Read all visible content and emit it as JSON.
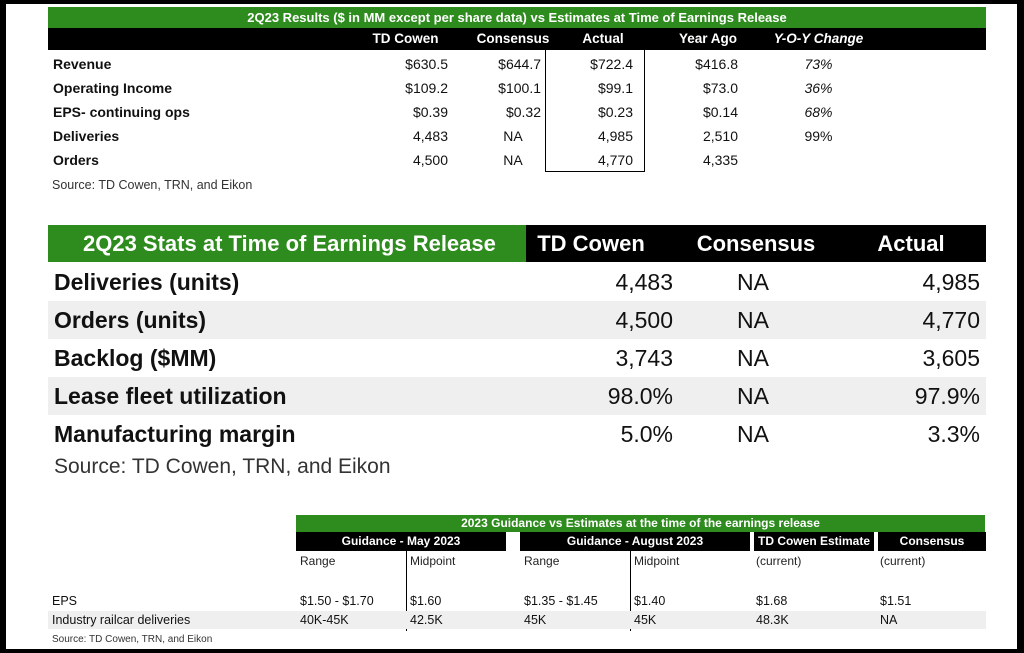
{
  "table1": {
    "title": "2Q23 Results ($ in MM except per share data) vs Estimates at Time of Earnings Release",
    "headers": [
      "TD Cowen",
      "Consensus",
      "Actual",
      "Year Ago",
      "Y-O-Y Change"
    ],
    "rows": [
      {
        "label": "Revenue",
        "values": [
          "$630.5",
          "$644.7",
          "$722.4",
          "$416.8",
          "73%"
        ]
      },
      {
        "label": "Operating Income",
        "values": [
          "$109.2",
          "$100.1",
          "$99.1",
          "$73.0",
          "36%"
        ]
      },
      {
        "label": "EPS- continuing ops",
        "values": [
          "$0.39",
          "$0.32",
          "$0.23",
          "$0.14",
          "68%"
        ]
      },
      {
        "label": "Deliveries",
        "values": [
          "4,483",
          "NA",
          "4,985",
          "2,510",
          "99%"
        ]
      },
      {
        "label": "Orders",
        "values": [
          "4,500",
          "NA",
          "4,770",
          "4,335",
          ""
        ]
      }
    ],
    "source": "Source: TD Cowen, TRN, and Eikon"
  },
  "table2": {
    "title": "2Q23 Stats at Time of Earnings Release",
    "headers": [
      "TD Cowen",
      "Consensus",
      "Actual"
    ],
    "rows": [
      {
        "label": "Deliveries (units)",
        "values": [
          "4,483",
          "NA",
          "4,985"
        ]
      },
      {
        "label": "Orders (units)",
        "values": [
          "4,500",
          "NA",
          "4,770"
        ]
      },
      {
        "label": "Backlog ($MM)",
        "values": [
          "3,743",
          "NA",
          "3,605"
        ]
      },
      {
        "label": "Lease fleet utilization",
        "values": [
          "98.0%",
          "NA",
          "97.9%"
        ]
      },
      {
        "label": "Manufacturing margin",
        "values": [
          "5.0%",
          "NA",
          "3.3%"
        ]
      }
    ],
    "source": "Source: TD Cowen, TRN, and Eikon"
  },
  "table3": {
    "title": "2023 Guidance vs Estimates at the time of the earnings release",
    "groups": [
      "Guidance - May 2023",
      "Guidance - August 2023",
      "TD Cowen Estimate",
      "Consensus"
    ],
    "subheaders": [
      "Range",
      "Midpoint",
      "Range",
      "Midpoint",
      "(current)",
      "(current)"
    ],
    "rows": [
      {
        "label": "EPS",
        "values": [
          "$1.50 - $1.70",
          "$1.60",
          "$1.35 - $1.45",
          "$1.40",
          "$1.68",
          "$1.51"
        ]
      },
      {
        "label": "Industry railcar deliveries",
        "values": [
          "40K-45K",
          "42.5K",
          "45K",
          "45K",
          "48.3K",
          "NA"
        ]
      }
    ],
    "source": "Source: TD Cowen, TRN, and Eikon"
  },
  "colors": {
    "green": "#2e8b1e",
    "black": "#000000",
    "stripe": "#efefef"
  }
}
